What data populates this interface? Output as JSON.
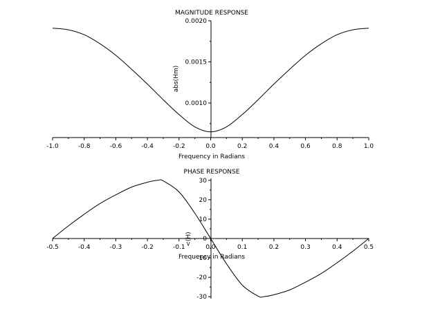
{
  "chart_data": [
    {
      "type": "line",
      "title": "MAGNITUDE RESPONSE",
      "xlabel": "Frequency in Radians",
      "ylabel": "abs(Hm)",
      "xlim": [
        -1.0,
        1.0
      ],
      "ylim": [
        0.00058,
        0.002
      ],
      "x_ticks": [
        "-1.0",
        "-0.8",
        "-0.6",
        "-0.4",
        "-0.2",
        "0.0",
        "0.2",
        "0.4",
        "0.6",
        "0.8",
        "1.0"
      ],
      "y_ticks": [
        "0.0010",
        "0.0015",
        "0.0020"
      ],
      "series": [
        {
          "x": [
            -1.0,
            -0.9,
            -0.8,
            -0.7,
            -0.6,
            -0.5,
            -0.4,
            -0.3,
            -0.2,
            -0.1,
            0.0,
            0.1,
            0.2,
            0.3,
            0.4,
            0.5,
            0.6,
            0.7,
            0.8,
            0.9,
            1.0
          ],
          "values": [
            0.00191,
            0.00189,
            0.00183,
            0.00172,
            0.00158,
            0.00141,
            0.00123,
            0.00104,
            0.00086,
            0.00071,
            0.00065,
            0.00071,
            0.00086,
            0.00104,
            0.00123,
            0.00141,
            0.00158,
            0.00172,
            0.00183,
            0.00189,
            0.00191
          ]
        }
      ],
      "grid": false
    },
    {
      "type": "line",
      "title": "PHASE RESPONSE",
      "xlabel": "Frequency in Radians",
      "ylabel": "<(H)",
      "xlim": [
        -0.5,
        0.5
      ],
      "ylim": [
        -31,
        31
      ],
      "x_ticks": [
        "-0.5",
        "-0.4",
        "-0.3",
        "-0.2",
        "-0.1",
        "0.0",
        "0.1",
        "0.2",
        "0.3",
        "0.4",
        "0.5"
      ],
      "y_ticks": [
        "-30",
        "-20",
        "-10",
        "0",
        "10",
        "20",
        "30"
      ],
      "series": [
        {
          "x": [
            -0.5,
            -0.45,
            -0.4,
            -0.35,
            -0.3,
            -0.25,
            -0.2,
            -0.167,
            -0.15,
            -0.1,
            -0.05,
            0.0,
            0.05,
            0.1,
            0.15,
            0.167,
            0.2,
            0.25,
            0.3,
            0.35,
            0.4,
            0.45,
            0.5
          ],
          "values": [
            0,
            6.5,
            12.5,
            18,
            22.5,
            26.5,
            29,
            30,
            29.7,
            24,
            13,
            0,
            -13,
            -24,
            -29.7,
            -30,
            -29,
            -26.5,
            -22.5,
            -18,
            -12.5,
            -6.5,
            0
          ]
        }
      ],
      "grid": false
    }
  ]
}
